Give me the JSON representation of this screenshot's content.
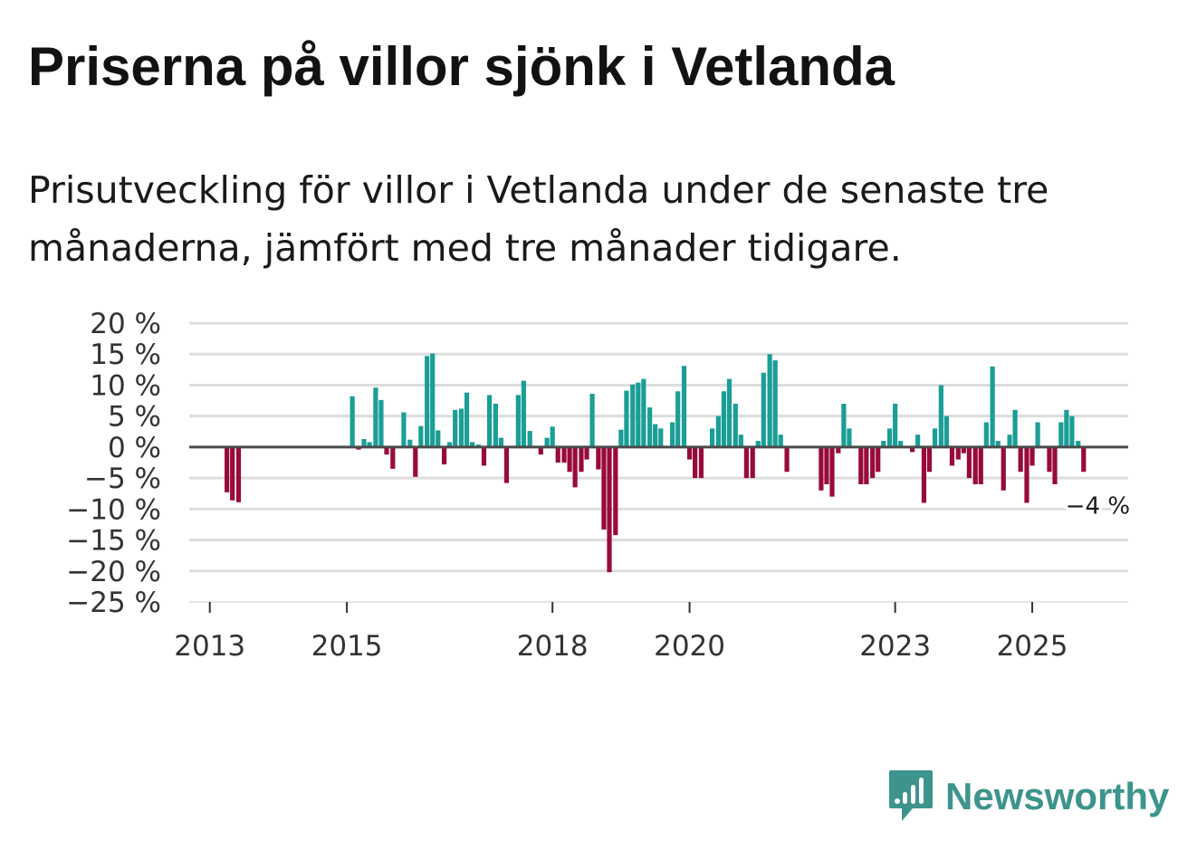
{
  "header": {
    "title": "Priserna på villor sjönk i Vetlanda",
    "subtitle": "Prisutveckling för villor i Vetlanda under de senaste tre månaderna, jämfört med tre månader tidigare."
  },
  "logo": {
    "text": "Newsworthy",
    "icon": "bar-chart-speech-bubble-icon"
  },
  "colors": {
    "positive": "#1a9e96",
    "negative": "#990a3c",
    "grid": "#dddddd",
    "zero_line": "#4a4a4a",
    "logo": "#3d948d"
  },
  "chart_data": {
    "type": "bar",
    "title": "Priserna på villor sjönk i Vetlanda",
    "xlabel": "",
    "ylabel": "",
    "ylim": [
      -25,
      20
    ],
    "y_ticks": [
      20,
      15,
      10,
      5,
      0,
      -5,
      -10,
      -15,
      -20,
      -25
    ],
    "y_tick_labels": [
      "20 %",
      "15 %",
      "10 %",
      "5 %",
      "0 %",
      "−5 %",
      "−10 %",
      "−15 %",
      "−20 %",
      "−25 %"
    ],
    "x_ticks": [
      2013,
      2015,
      2018,
      2020,
      2023,
      2025
    ],
    "x_tick_labels": [
      "2013",
      "2015",
      "2018",
      "2020",
      "2023",
      "2025"
    ],
    "grid": true,
    "annotation": {
      "label": "−4 %",
      "date": 2025.67,
      "value": -4
    },
    "series": [
      {
        "name": "Prisutveckling (%)",
        "points": [
          {
            "x": 2013.25,
            "y": -7.3
          },
          {
            "x": 2013.33,
            "y": -8.6
          },
          {
            "x": 2013.42,
            "y": -8.9
          },
          {
            "x": 2015.08,
            "y": 8.2
          },
          {
            "x": 2015.17,
            "y": -0.4
          },
          {
            "x": 2015.25,
            "y": 1.3
          },
          {
            "x": 2015.33,
            "y": 0.8
          },
          {
            "x": 2015.42,
            "y": 9.6
          },
          {
            "x": 2015.5,
            "y": 7.6
          },
          {
            "x": 2015.58,
            "y": -1.2
          },
          {
            "x": 2015.67,
            "y": -3.5
          },
          {
            "x": 2015.83,
            "y": 5.6
          },
          {
            "x": 2015.92,
            "y": 1.2
          },
          {
            "x": 2016.0,
            "y": -4.8
          },
          {
            "x": 2016.08,
            "y": 3.4
          },
          {
            "x": 2016.17,
            "y": 14.7
          },
          {
            "x": 2016.25,
            "y": 15.1
          },
          {
            "x": 2016.33,
            "y": 2.7
          },
          {
            "x": 2016.42,
            "y": -2.8
          },
          {
            "x": 2016.5,
            "y": 0.8
          },
          {
            "x": 2016.58,
            "y": 6.0
          },
          {
            "x": 2016.67,
            "y": 6.2
          },
          {
            "x": 2016.75,
            "y": 8.8
          },
          {
            "x": 2016.83,
            "y": 0.8
          },
          {
            "x": 2016.92,
            "y": 0.4
          },
          {
            "x": 2017.0,
            "y": -3.0
          },
          {
            "x": 2017.08,
            "y": 8.4
          },
          {
            "x": 2017.17,
            "y": 7.0
          },
          {
            "x": 2017.25,
            "y": 1.5
          },
          {
            "x": 2017.33,
            "y": -5.8
          },
          {
            "x": 2017.5,
            "y": 8.4
          },
          {
            "x": 2017.58,
            "y": 10.7
          },
          {
            "x": 2017.67,
            "y": 2.6
          },
          {
            "x": 2017.83,
            "y": -1.2
          },
          {
            "x": 2017.92,
            "y": 1.5
          },
          {
            "x": 2018.0,
            "y": 3.3
          },
          {
            "x": 2018.08,
            "y": -2.5
          },
          {
            "x": 2018.17,
            "y": -2.5
          },
          {
            "x": 2018.25,
            "y": -4.0
          },
          {
            "x": 2018.33,
            "y": -6.5
          },
          {
            "x": 2018.42,
            "y": -4.0
          },
          {
            "x": 2018.5,
            "y": -2.0
          },
          {
            "x": 2018.58,
            "y": 8.6
          },
          {
            "x": 2018.67,
            "y": -3.6
          },
          {
            "x": 2018.75,
            "y": -13.3
          },
          {
            "x": 2018.83,
            "y": -20.2
          },
          {
            "x": 2018.92,
            "y": -14.2
          },
          {
            "x": 2019.0,
            "y": 2.8
          },
          {
            "x": 2019.08,
            "y": 9.1
          },
          {
            "x": 2019.17,
            "y": 10.1
          },
          {
            "x": 2019.25,
            "y": 10.4
          },
          {
            "x": 2019.33,
            "y": 11.0
          },
          {
            "x": 2019.42,
            "y": 6.4
          },
          {
            "x": 2019.5,
            "y": 3.7
          },
          {
            "x": 2019.58,
            "y": 3.0
          },
          {
            "x": 2019.75,
            "y": 4.0
          },
          {
            "x": 2019.83,
            "y": 9.0
          },
          {
            "x": 2019.92,
            "y": 13.1
          },
          {
            "x": 2020.0,
            "y": -2.0
          },
          {
            "x": 2020.08,
            "y": -5.0
          },
          {
            "x": 2020.17,
            "y": -5.0
          },
          {
            "x": 2020.33,
            "y": 3.0
          },
          {
            "x": 2020.42,
            "y": 5.0
          },
          {
            "x": 2020.5,
            "y": 9.0
          },
          {
            "x": 2020.58,
            "y": 11.0
          },
          {
            "x": 2020.67,
            "y": 7.0
          },
          {
            "x": 2020.75,
            "y": 2.0
          },
          {
            "x": 2020.83,
            "y": -5.0
          },
          {
            "x": 2020.92,
            "y": -5.0
          },
          {
            "x": 2021.0,
            "y": 1.0
          },
          {
            "x": 2021.08,
            "y": 12.0
          },
          {
            "x": 2021.17,
            "y": 15.0
          },
          {
            "x": 2021.25,
            "y": 14.0
          },
          {
            "x": 2021.33,
            "y": 2.0
          },
          {
            "x": 2021.42,
            "y": -4.0
          },
          {
            "x": 2021.92,
            "y": -7.0
          },
          {
            "x": 2022.0,
            "y": -6.0
          },
          {
            "x": 2022.08,
            "y": -8.0
          },
          {
            "x": 2022.17,
            "y": -1.0
          },
          {
            "x": 2022.25,
            "y": 7.0
          },
          {
            "x": 2022.33,
            "y": 3.0
          },
          {
            "x": 2022.5,
            "y": -6.0
          },
          {
            "x": 2022.58,
            "y": -6.0
          },
          {
            "x": 2022.67,
            "y": -5.0
          },
          {
            "x": 2022.75,
            "y": -4.0
          },
          {
            "x": 2022.83,
            "y": 1.0
          },
          {
            "x": 2022.92,
            "y": 3.0
          },
          {
            "x": 2023.0,
            "y": 7.0
          },
          {
            "x": 2023.08,
            "y": 1.0
          },
          {
            "x": 2023.25,
            "y": -0.8
          },
          {
            "x": 2023.33,
            "y": 2.0
          },
          {
            "x": 2023.42,
            "y": -9.0
          },
          {
            "x": 2023.5,
            "y": -4.0
          },
          {
            "x": 2023.58,
            "y": 3.0
          },
          {
            "x": 2023.67,
            "y": 10.0
          },
          {
            "x": 2023.75,
            "y": 5.0
          },
          {
            "x": 2023.83,
            "y": -3.0
          },
          {
            "x": 2023.92,
            "y": -2.0
          },
          {
            "x": 2024.0,
            "y": -1.0
          },
          {
            "x": 2024.08,
            "y": -5.0
          },
          {
            "x": 2024.17,
            "y": -6.0
          },
          {
            "x": 2024.25,
            "y": -6.0
          },
          {
            "x": 2024.33,
            "y": 4.0
          },
          {
            "x": 2024.42,
            "y": 13.0
          },
          {
            "x": 2024.5,
            "y": 1.0
          },
          {
            "x": 2024.58,
            "y": -7.0
          },
          {
            "x": 2024.67,
            "y": 2.0
          },
          {
            "x": 2024.75,
            "y": 6.0
          },
          {
            "x": 2024.83,
            "y": -4.0
          },
          {
            "x": 2024.92,
            "y": -9.0
          },
          {
            "x": 2025.0,
            "y": -3.0
          },
          {
            "x": 2025.08,
            "y": 4.0
          },
          {
            "x": 2025.25,
            "y": -4.0
          },
          {
            "x": 2025.33,
            "y": -6.0
          },
          {
            "x": 2025.42,
            "y": 4.0
          },
          {
            "x": 2025.5,
            "y": 6.0
          },
          {
            "x": 2025.58,
            "y": 5.0
          },
          {
            "x": 2025.67,
            "y": 1.0
          },
          {
            "x": 2025.75,
            "y": -4.0
          }
        ]
      }
    ]
  }
}
